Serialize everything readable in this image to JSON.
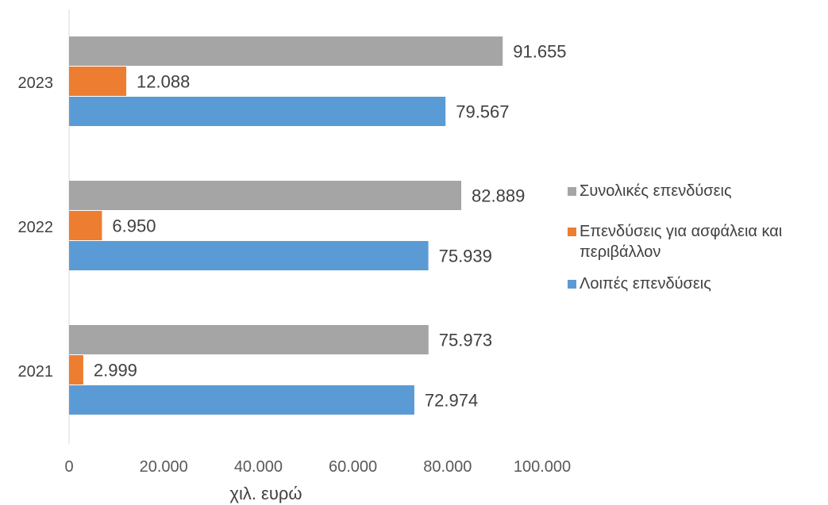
{
  "chart_data": {
    "type": "bar",
    "orientation": "horizontal",
    "categories": [
      "2021",
      "2022",
      "2023"
    ],
    "series": [
      {
        "name": "Λοιπές επενδύσεις",
        "color": "#5b9bd5",
        "values": [
          72974,
          75939,
          79567
        ],
        "labels": [
          "72.974",
          "75.939",
          "79.567"
        ]
      },
      {
        "name": "Επενδύσεις για ασφάλεια και περιβάλλον",
        "color": "#ed7d31",
        "values": [
          2999,
          6950,
          12088
        ],
        "labels": [
          "2.999",
          "6.950",
          "12.088"
        ]
      },
      {
        "name": "Συνολικές επενδύσεις",
        "color": "#a5a5a5",
        "values": [
          75973,
          82889,
          91655
        ],
        "labels": [
          "75.973",
          "82.889",
          "91.655"
        ]
      }
    ],
    "xlim": [
      0,
      100000
    ],
    "xticks": [
      0,
      20000,
      40000,
      60000,
      80000,
      100000
    ],
    "xtick_labels": [
      "0",
      "20.000",
      "40.000",
      "60.000",
      "80.000",
      "100.000"
    ],
    "xlabel": "χιλ. ευρώ",
    "grid": false,
    "legend_position": "right"
  },
  "legend": {
    "items": [
      {
        "label": "Συνολικές επενδύσεις",
        "color": "#a5a5a5"
      },
      {
        "label": "Επενδύσεις για ασφάλεια και περιβάλλον",
        "color": "#ed7d31"
      },
      {
        "label": "Λοιπές επενδύσεις",
        "color": "#5b9bd5"
      }
    ]
  }
}
